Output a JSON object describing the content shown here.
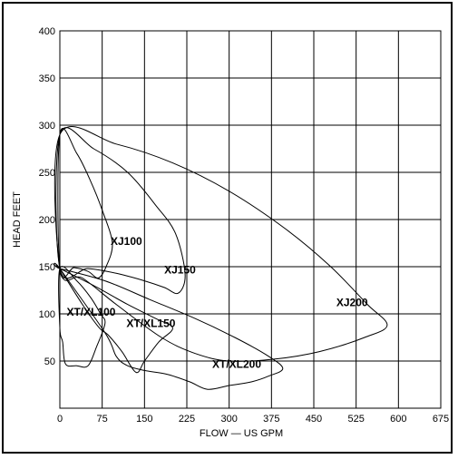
{
  "chart_data": {
    "type": "area",
    "xlabel": "FLOW — US GPM",
    "ylabel": "HEAD  FEET",
    "xlim": [
      0,
      675
    ],
    "ylim": [
      0,
      400
    ],
    "x_ticks": [
      0,
      75,
      150,
      225,
      300,
      375,
      450,
      525,
      600,
      675
    ],
    "x_tick_labels": [
      "0",
      "75",
      "150",
      "225",
      "300",
      "375",
      "450",
      "525",
      "600",
      "675"
    ],
    "y_ticks": [
      50,
      100,
      150,
      200,
      250,
      300,
      350,
      400
    ],
    "y_tick_labels": [
      "50",
      "100",
      "150",
      "200",
      "250",
      "300",
      "350",
      "400"
    ],
    "grid": true,
    "regions": [
      {
        "name": "XJ100",
        "label_at": [
          90,
          173
        ],
        "outline": [
          [
            0,
            290
          ],
          [
            30,
            270
          ],
          [
            55,
            240
          ],
          [
            75,
            210
          ],
          [
            93,
            175
          ],
          [
            82,
            150
          ],
          [
            68,
            138
          ],
          [
            50,
            145
          ],
          [
            25,
            149
          ],
          [
            0,
            148
          ]
        ]
      },
      {
        "name": "XJ150",
        "label_at": [
          185,
          143
        ],
        "outline": [
          [
            0,
            290
          ],
          [
            60,
            275
          ],
          [
            120,
            250
          ],
          [
            170,
            215
          ],
          [
            205,
            185
          ],
          [
            222,
            142
          ],
          [
            210,
            122
          ],
          [
            185,
            128
          ],
          [
            150,
            135
          ],
          [
            100,
            143
          ],
          [
            50,
            148
          ],
          [
            0,
            148
          ]
        ]
      },
      {
        "name": "XJ200",
        "label_at": [
          490,
          108
        ],
        "outline": [
          [
            0,
            290
          ],
          [
            100,
            280
          ],
          [
            200,
            260
          ],
          [
            300,
            230
          ],
          [
            400,
            190
          ],
          [
            480,
            150
          ],
          [
            545,
            110
          ],
          [
            580,
            88
          ],
          [
            540,
            75
          ],
          [
            460,
            60
          ],
          [
            380,
            52
          ],
          [
            300,
            50
          ],
          [
            240,
            58
          ],
          [
            180,
            75
          ],
          [
            100,
            110
          ],
          [
            40,
            138
          ],
          [
            0,
            148
          ]
        ]
      },
      {
        "name": "XT/XL100",
        "label_at": [
          12,
          98
        ],
        "outline": [
          [
            0,
            148
          ],
          [
            30,
            135
          ],
          [
            55,
            117
          ],
          [
            72,
            100
          ],
          [
            80,
            90
          ],
          [
            65,
            65
          ],
          [
            50,
            45
          ],
          [
            30,
            45
          ],
          [
            10,
            47
          ],
          [
            5,
            70
          ],
          [
            0,
            85
          ]
        ]
      },
      {
        "name": "XT/XL150",
        "label_at": [
          118,
          86
        ],
        "outline": [
          [
            0,
            148
          ],
          [
            60,
            130
          ],
          [
            120,
            110
          ],
          [
            170,
            95
          ],
          [
            200,
            85
          ],
          [
            175,
            70
          ],
          [
            150,
            50
          ],
          [
            135,
            38
          ],
          [
            110,
            60
          ],
          [
            85,
            78
          ],
          [
            70,
            85
          ],
          [
            40,
            110
          ],
          [
            0,
            148
          ]
        ]
      },
      {
        "name": "XT/XL200",
        "label_at": [
          270,
          43
        ],
        "outline": [
          [
            0,
            148
          ],
          [
            80,
            135
          ],
          [
            160,
            115
          ],
          [
            240,
            95
          ],
          [
            310,
            75
          ],
          [
            370,
            55
          ],
          [
            395,
            42
          ],
          [
            370,
            34
          ],
          [
            340,
            28
          ],
          [
            300,
            24
          ],
          [
            262,
            20
          ],
          [
            230,
            28
          ],
          [
            190,
            36
          ],
          [
            150,
            40
          ],
          [
            120,
            45
          ],
          [
            100,
            55
          ],
          [
            80,
            80
          ],
          [
            0,
            148
          ]
        ]
      }
    ]
  }
}
